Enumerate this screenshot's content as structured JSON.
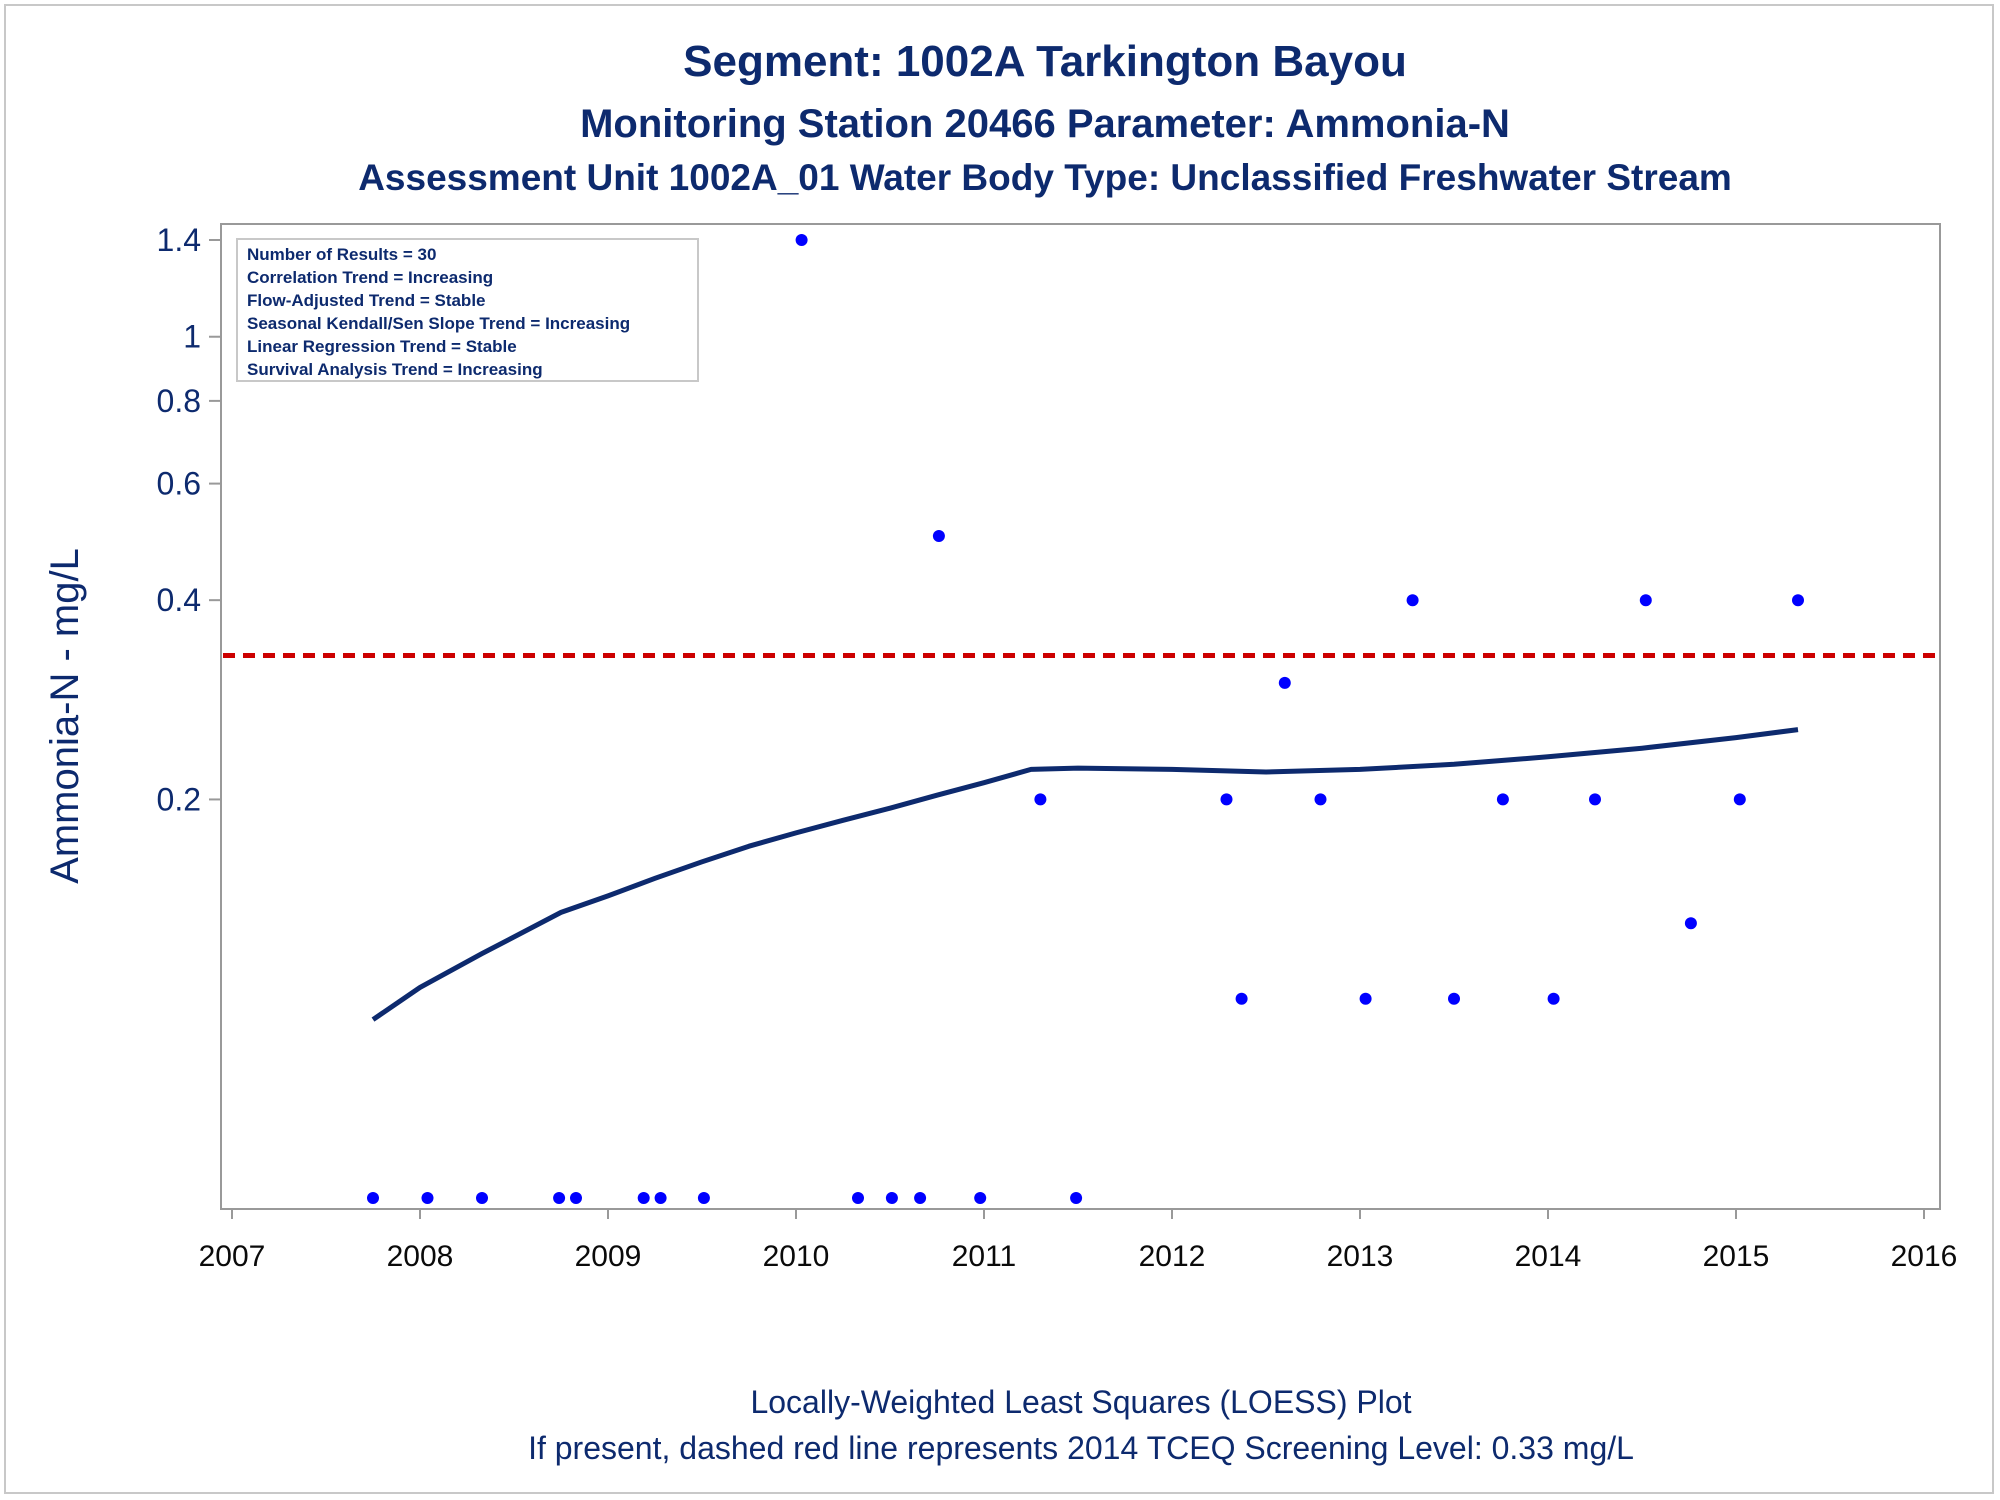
{
  "title": "Segment: 1002A  Tarkington Bayou",
  "subtitle": "Monitoring Station 20466 Parameter: Ammonia-N",
  "subtitle2": "Assessment Unit 1002A_01   Water Body Type: Unclassified Freshwater Stream",
  "info_box": [
    "Number of Results = 30",
    "Correlation Trend = Increasing",
    "Flow-Adjusted Trend = Stable",
    "Seasonal Kendall/Sen Slope Trend = Increasing",
    "Linear Regression Trend = Stable",
    "Survival Analysis Trend = Increasing"
  ],
  "footer": [
    "Locally-Weighted Least Squares (LOESS) Plot",
    "If present, dashed red line represents 2014 TCEQ Screening Level: 0.33 mg/L"
  ],
  "colors": {
    "text": "#0d2a6e",
    "points": "#0000ff",
    "loess": "#0d2a6e",
    "screening": "#cc0000",
    "axis": "#999999"
  },
  "chart_data": {
    "type": "scatter",
    "ylabel": "Ammonia-N - mg/L",
    "xlabel": "",
    "y_scale": "log",
    "xlim": [
      2007,
      2016
    ],
    "ylim": [
      0.05,
      1.4
    ],
    "x_ticks": [
      2007,
      2008,
      2009,
      2010,
      2011,
      2012,
      2013,
      2014,
      2015,
      2016
    ],
    "y_ticks": [
      0.2,
      0.4,
      0.6,
      0.8,
      1,
      1.4
    ],
    "grid": false,
    "screening_level": 0.33,
    "series": [
      {
        "type": "scatter",
        "points": [
          {
            "x": 2007.75,
            "y": 0.05
          },
          {
            "x": 2008.04,
            "y": 0.05
          },
          {
            "x": 2008.33,
            "y": 0.05
          },
          {
            "x": 2008.74,
            "y": 0.05
          },
          {
            "x": 2008.83,
            "y": 0.05
          },
          {
            "x": 2009.19,
            "y": 0.05
          },
          {
            "x": 2009.28,
            "y": 0.05
          },
          {
            "x": 2009.51,
            "y": 0.05
          },
          {
            "x": 2010.03,
            "y": 1.4
          },
          {
            "x": 2010.33,
            "y": 0.05
          },
          {
            "x": 2010.51,
            "y": 0.05
          },
          {
            "x": 2010.66,
            "y": 0.05
          },
          {
            "x": 2010.76,
            "y": 0.5
          },
          {
            "x": 2010.98,
            "y": 0.05
          },
          {
            "x": 2011.3,
            "y": 0.2
          },
          {
            "x": 2011.49,
            "y": 0.05
          },
          {
            "x": 2012.29,
            "y": 0.2
          },
          {
            "x": 2012.37,
            "y": 0.1
          },
          {
            "x": 2012.6,
            "y": 0.3
          },
          {
            "x": 2012.79,
            "y": 0.2
          },
          {
            "x": 2013.03,
            "y": 0.1
          },
          {
            "x": 2013.28,
            "y": 0.4
          },
          {
            "x": 2013.5,
            "y": 0.1
          },
          {
            "x": 2013.76,
            "y": 0.2
          },
          {
            "x": 2014.03,
            "y": 0.1
          },
          {
            "x": 2014.25,
            "y": 0.2
          },
          {
            "x": 2014.52,
            "y": 0.4
          },
          {
            "x": 2014.76,
            "y": 0.13
          },
          {
            "x": 2015.02,
            "y": 0.2
          },
          {
            "x": 2015.33,
            "y": 0.4
          }
        ]
      },
      {
        "type": "line",
        "points": [
          {
            "x": 2007.75,
            "y": 0.093
          },
          {
            "x": 2008.0,
            "y": 0.104
          },
          {
            "x": 2008.33,
            "y": 0.117
          },
          {
            "x": 2008.75,
            "y": 0.135
          },
          {
            "x": 2009.0,
            "y": 0.143
          },
          {
            "x": 2009.25,
            "y": 0.152
          },
          {
            "x": 2009.5,
            "y": 0.161
          },
          {
            "x": 2009.75,
            "y": 0.17
          },
          {
            "x": 2010.0,
            "y": 0.178
          },
          {
            "x": 2010.25,
            "y": 0.186
          },
          {
            "x": 2010.5,
            "y": 0.194
          },
          {
            "x": 2010.75,
            "y": 0.203
          },
          {
            "x": 2011.0,
            "y": 0.212
          },
          {
            "x": 2011.25,
            "y": 0.222
          },
          {
            "x": 2011.5,
            "y": 0.223
          },
          {
            "x": 2012.0,
            "y": 0.222
          },
          {
            "x": 2012.5,
            "y": 0.22
          },
          {
            "x": 2013.0,
            "y": 0.222
          },
          {
            "x": 2013.5,
            "y": 0.226
          },
          {
            "x": 2014.0,
            "y": 0.232
          },
          {
            "x": 2014.5,
            "y": 0.239
          },
          {
            "x": 2015.0,
            "y": 0.248
          },
          {
            "x": 2015.33,
            "y": 0.255
          }
        ]
      }
    ]
  }
}
